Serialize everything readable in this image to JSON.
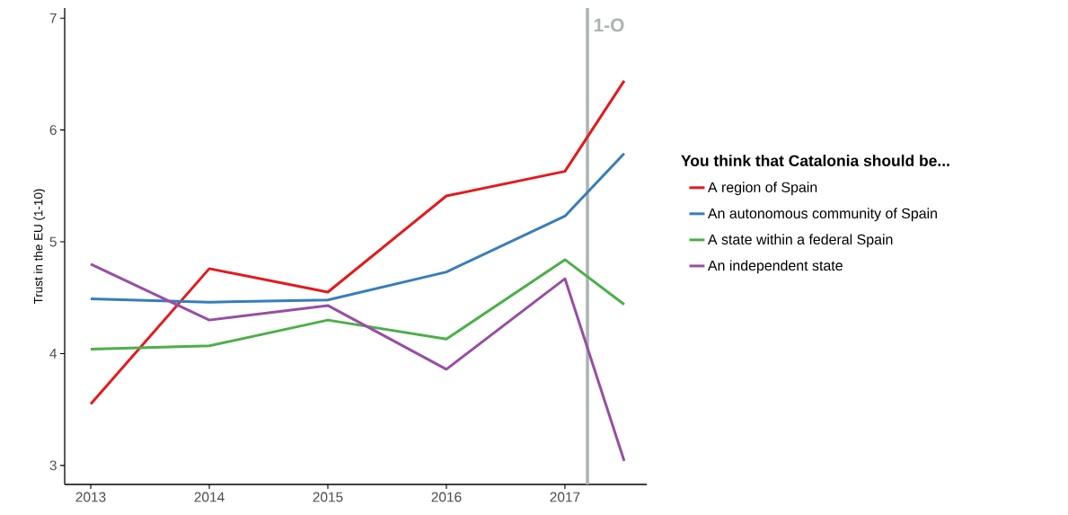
{
  "chart_data": {
    "type": "line",
    "ylabel": "Trust in the EU (1-10)",
    "legend_title": "You think that Catalonia should be...",
    "legend": "right",
    "grid": false,
    "x": [
      2013,
      2014,
      2015,
      2016,
      2017,
      2017.5
    ],
    "xlim": [
      2012.78,
      2017.69
    ],
    "xticks": [
      2013,
      2014,
      2015,
      2016,
      2017
    ],
    "ylim": [
      2.83,
      7.09
    ],
    "yticks": [
      3,
      4,
      5,
      6,
      7
    ],
    "series": [
      {
        "name": "A region of Spain",
        "color": "#e41a1c",
        "values": [
          3.55,
          4.76,
          4.55,
          5.41,
          5.63,
          6.44
        ]
      },
      {
        "name": "An autonomous community of Spain",
        "color": "#377eb8",
        "values": [
          4.49,
          4.46,
          4.48,
          4.73,
          5.23,
          5.79
        ]
      },
      {
        "name": "A state within a federal Spain",
        "color": "#4daf4a",
        "values": [
          4.04,
          4.07,
          4.3,
          4.13,
          4.84,
          4.44
        ]
      },
      {
        "name": "An independent state",
        "color": "#984ea3",
        "values": [
          4.8,
          4.3,
          4.43,
          3.86,
          4.67,
          3.04
        ]
      }
    ],
    "ref_lines": [
      {
        "axis": "x",
        "value": 2017.19,
        "label": "1-O",
        "color": "#aab3b3"
      }
    ]
  }
}
